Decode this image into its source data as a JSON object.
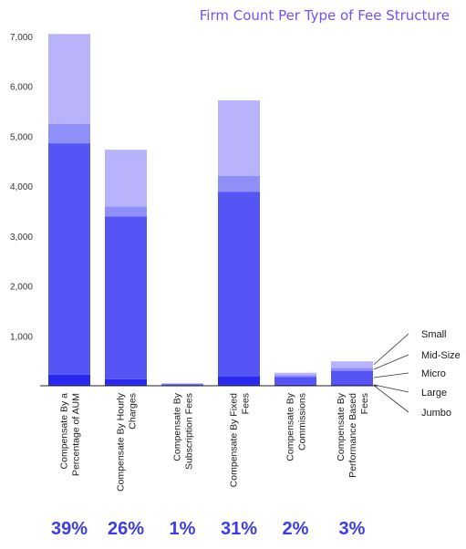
{
  "chart_data": {
    "type": "bar",
    "stacked": true,
    "title": "Firm Count Per Type of Fee Structure",
    "ylim": [
      0,
      7000
    ],
    "yticks": [
      "",
      "1,000",
      "2,000",
      "3,000",
      "4,000",
      "5,000",
      "6,000",
      "7,000"
    ],
    "ytick_values": [
      0,
      1000,
      2000,
      3000,
      4000,
      5000,
      6000,
      7000
    ],
    "categories": [
      [
        "Compensate By a",
        "Percentage of AUM"
      ],
      [
        "Compensate By Hourly",
        "Charges"
      ],
      [
        "Compensate By",
        "Subscription Fees"
      ],
      [
        "Compensate By Fixed",
        "Fees"
      ],
      [
        "Compensate By",
        "Commissions"
      ],
      [
        "Compensate By",
        "Performance Based",
        "Fees"
      ]
    ],
    "shares": [
      "39%",
      "26%",
      "1%",
      "31%",
      "2%",
      "3%"
    ],
    "series": [
      {
        "name": "Jumbo",
        "color": "#1a1ae0",
        "values": [
          20,
          20,
          0,
          20,
          0,
          10
        ]
      },
      {
        "name": "Large",
        "color": "#2828f0",
        "values": [
          200,
          110,
          5,
          170,
          20,
          20
        ]
      },
      {
        "name": "Micro",
        "color": "#5555f5",
        "values": [
          4640,
          3260,
          25,
          3700,
          160,
          270
        ]
      },
      {
        "name": "Mid-Size",
        "color": "#8f8ff8",
        "values": [
          390,
          200,
          10,
          320,
          30,
          60
        ]
      },
      {
        "name": "Small",
        "color": "#b8b3fb",
        "values": [
          1800,
          1140,
          10,
          1510,
          50,
          130
        ]
      }
    ],
    "legend_order": [
      "Small",
      "Mid-Size",
      "Micro",
      "Large",
      "Jumbo"
    ],
    "grid": false,
    "legend_position": "right",
    "colors": {
      "title": "#7a4df5",
      "share": "#3d3de8",
      "axis": "#222222"
    }
  }
}
